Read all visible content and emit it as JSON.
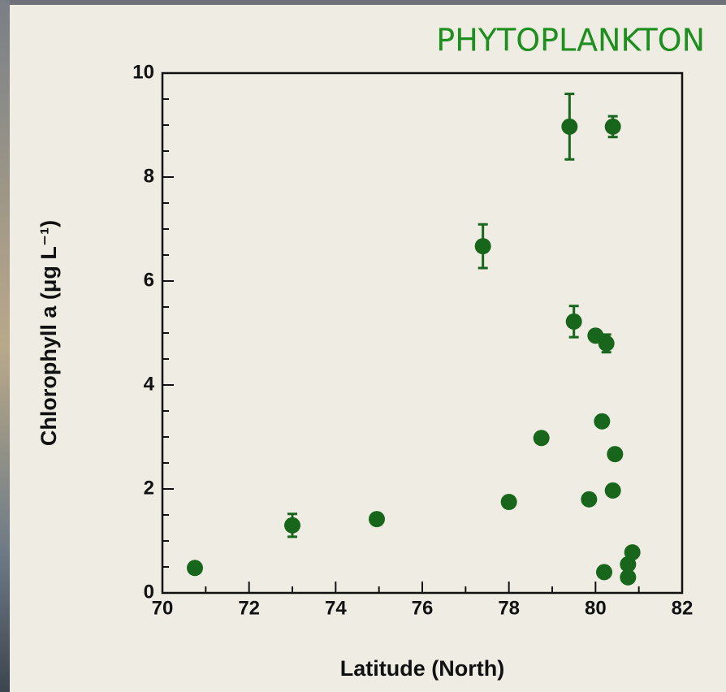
{
  "chart_data": {
    "type": "scatter",
    "title": "PHYTOPLANKTON",
    "xlabel": "Latitude (North)",
    "ylabel": "Chlorophyll a (μg L⁻¹)",
    "color": "#17661c",
    "xlim": [
      70,
      82
    ],
    "ylim": [
      0,
      10
    ],
    "xticks": [
      70,
      72,
      74,
      76,
      78,
      80,
      82
    ],
    "yticks": [
      0,
      2,
      4,
      6,
      8,
      10
    ],
    "xminorticks": [
      71,
      73,
      75,
      77,
      79,
      81
    ],
    "yminorticks": [
      0.5,
      1,
      1.5,
      2.5,
      3,
      3.5,
      4.5,
      5,
      5.5,
      6.5,
      7,
      7.5,
      8.5,
      9,
      9.5
    ],
    "series": [
      {
        "name": "Chlorophyll a",
        "x": [
          70.75,
          73.0,
          74.95,
          77.4,
          78.0,
          78.75,
          79.4,
          79.5,
          79.85,
          80.0,
          80.15,
          80.2,
          80.25,
          80.4,
          80.4,
          80.45,
          80.75,
          80.75,
          80.85
        ],
        "values": [
          0.48,
          1.3,
          1.42,
          6.67,
          1.75,
          2.98,
          8.97,
          5.22,
          1.8,
          4.95,
          3.3,
          0.4,
          4.8,
          8.97,
          1.97,
          2.67,
          0.55,
          0.3,
          0.78
        ],
        "errors": [
          null,
          0.22,
          null,
          0.42,
          null,
          null,
          0.63,
          0.3,
          null,
          null,
          null,
          null,
          0.17,
          0.2,
          null,
          null,
          null,
          null,
          null
        ]
      }
    ]
  }
}
